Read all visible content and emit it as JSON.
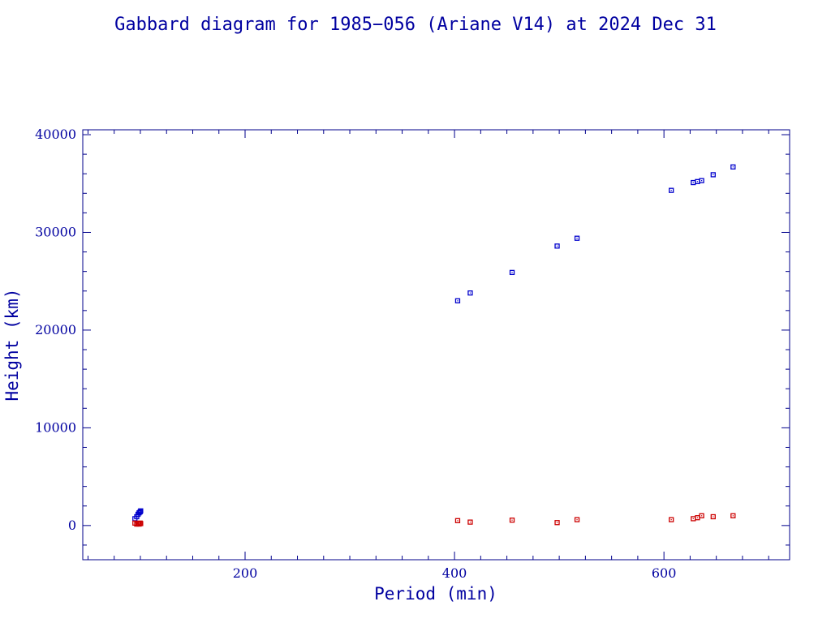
{
  "chart_data": {
    "type": "scatter",
    "title": "Gabbard diagram for 1985−056 (Ariane V14) at 2024 Dec 31",
    "xlabel": "Period (min)",
    "ylabel": "Height (km)",
    "xlim": [
      45,
      720
    ],
    "ylim": [
      -3500,
      40500
    ],
    "x_ticks": [
      200,
      400,
      600
    ],
    "y_ticks": [
      0,
      10000,
      20000,
      30000,
      40000
    ],
    "x_tick_labels": [
      "200",
      "400",
      "600"
    ],
    "y_tick_labels": [
      "0",
      "10000",
      "20000",
      "30000",
      "40000"
    ],
    "grid": false,
    "legend": "none",
    "series": [
      {
        "color": "#0000cc",
        "marker": "square",
        "x": [
          94.8,
          96.5,
          97.8,
          98.8,
          99.8,
          100.3,
          403.0,
          415.0,
          455.0,
          498.0,
          517.0,
          607.0,
          628.0,
          632.0,
          636.0,
          647.0,
          666.0
        ],
        "y": [
          700,
          900,
          1150,
          1300,
          1400,
          1500,
          23000,
          23800,
          25900,
          28600,
          29400,
          34300,
          35100,
          35200,
          35300,
          35900,
          36700
        ]
      },
      {
        "color": "#cc0000",
        "marker": "square",
        "x": [
          94.8,
          96.5,
          97.8,
          98.8,
          99.8,
          100.3,
          403.0,
          415.0,
          455.0,
          498.0,
          517.0,
          607.0,
          628.0,
          632.0,
          636.0,
          647.0,
          666.0
        ],
        "y": [
          250,
          150,
          200,
          150,
          250,
          200,
          500,
          350,
          550,
          300,
          600,
          600,
          700,
          800,
          1000,
          900,
          1000
        ]
      }
    ]
  },
  "colors": {
    "text": "#0000a0",
    "axes": "#00008b"
  }
}
